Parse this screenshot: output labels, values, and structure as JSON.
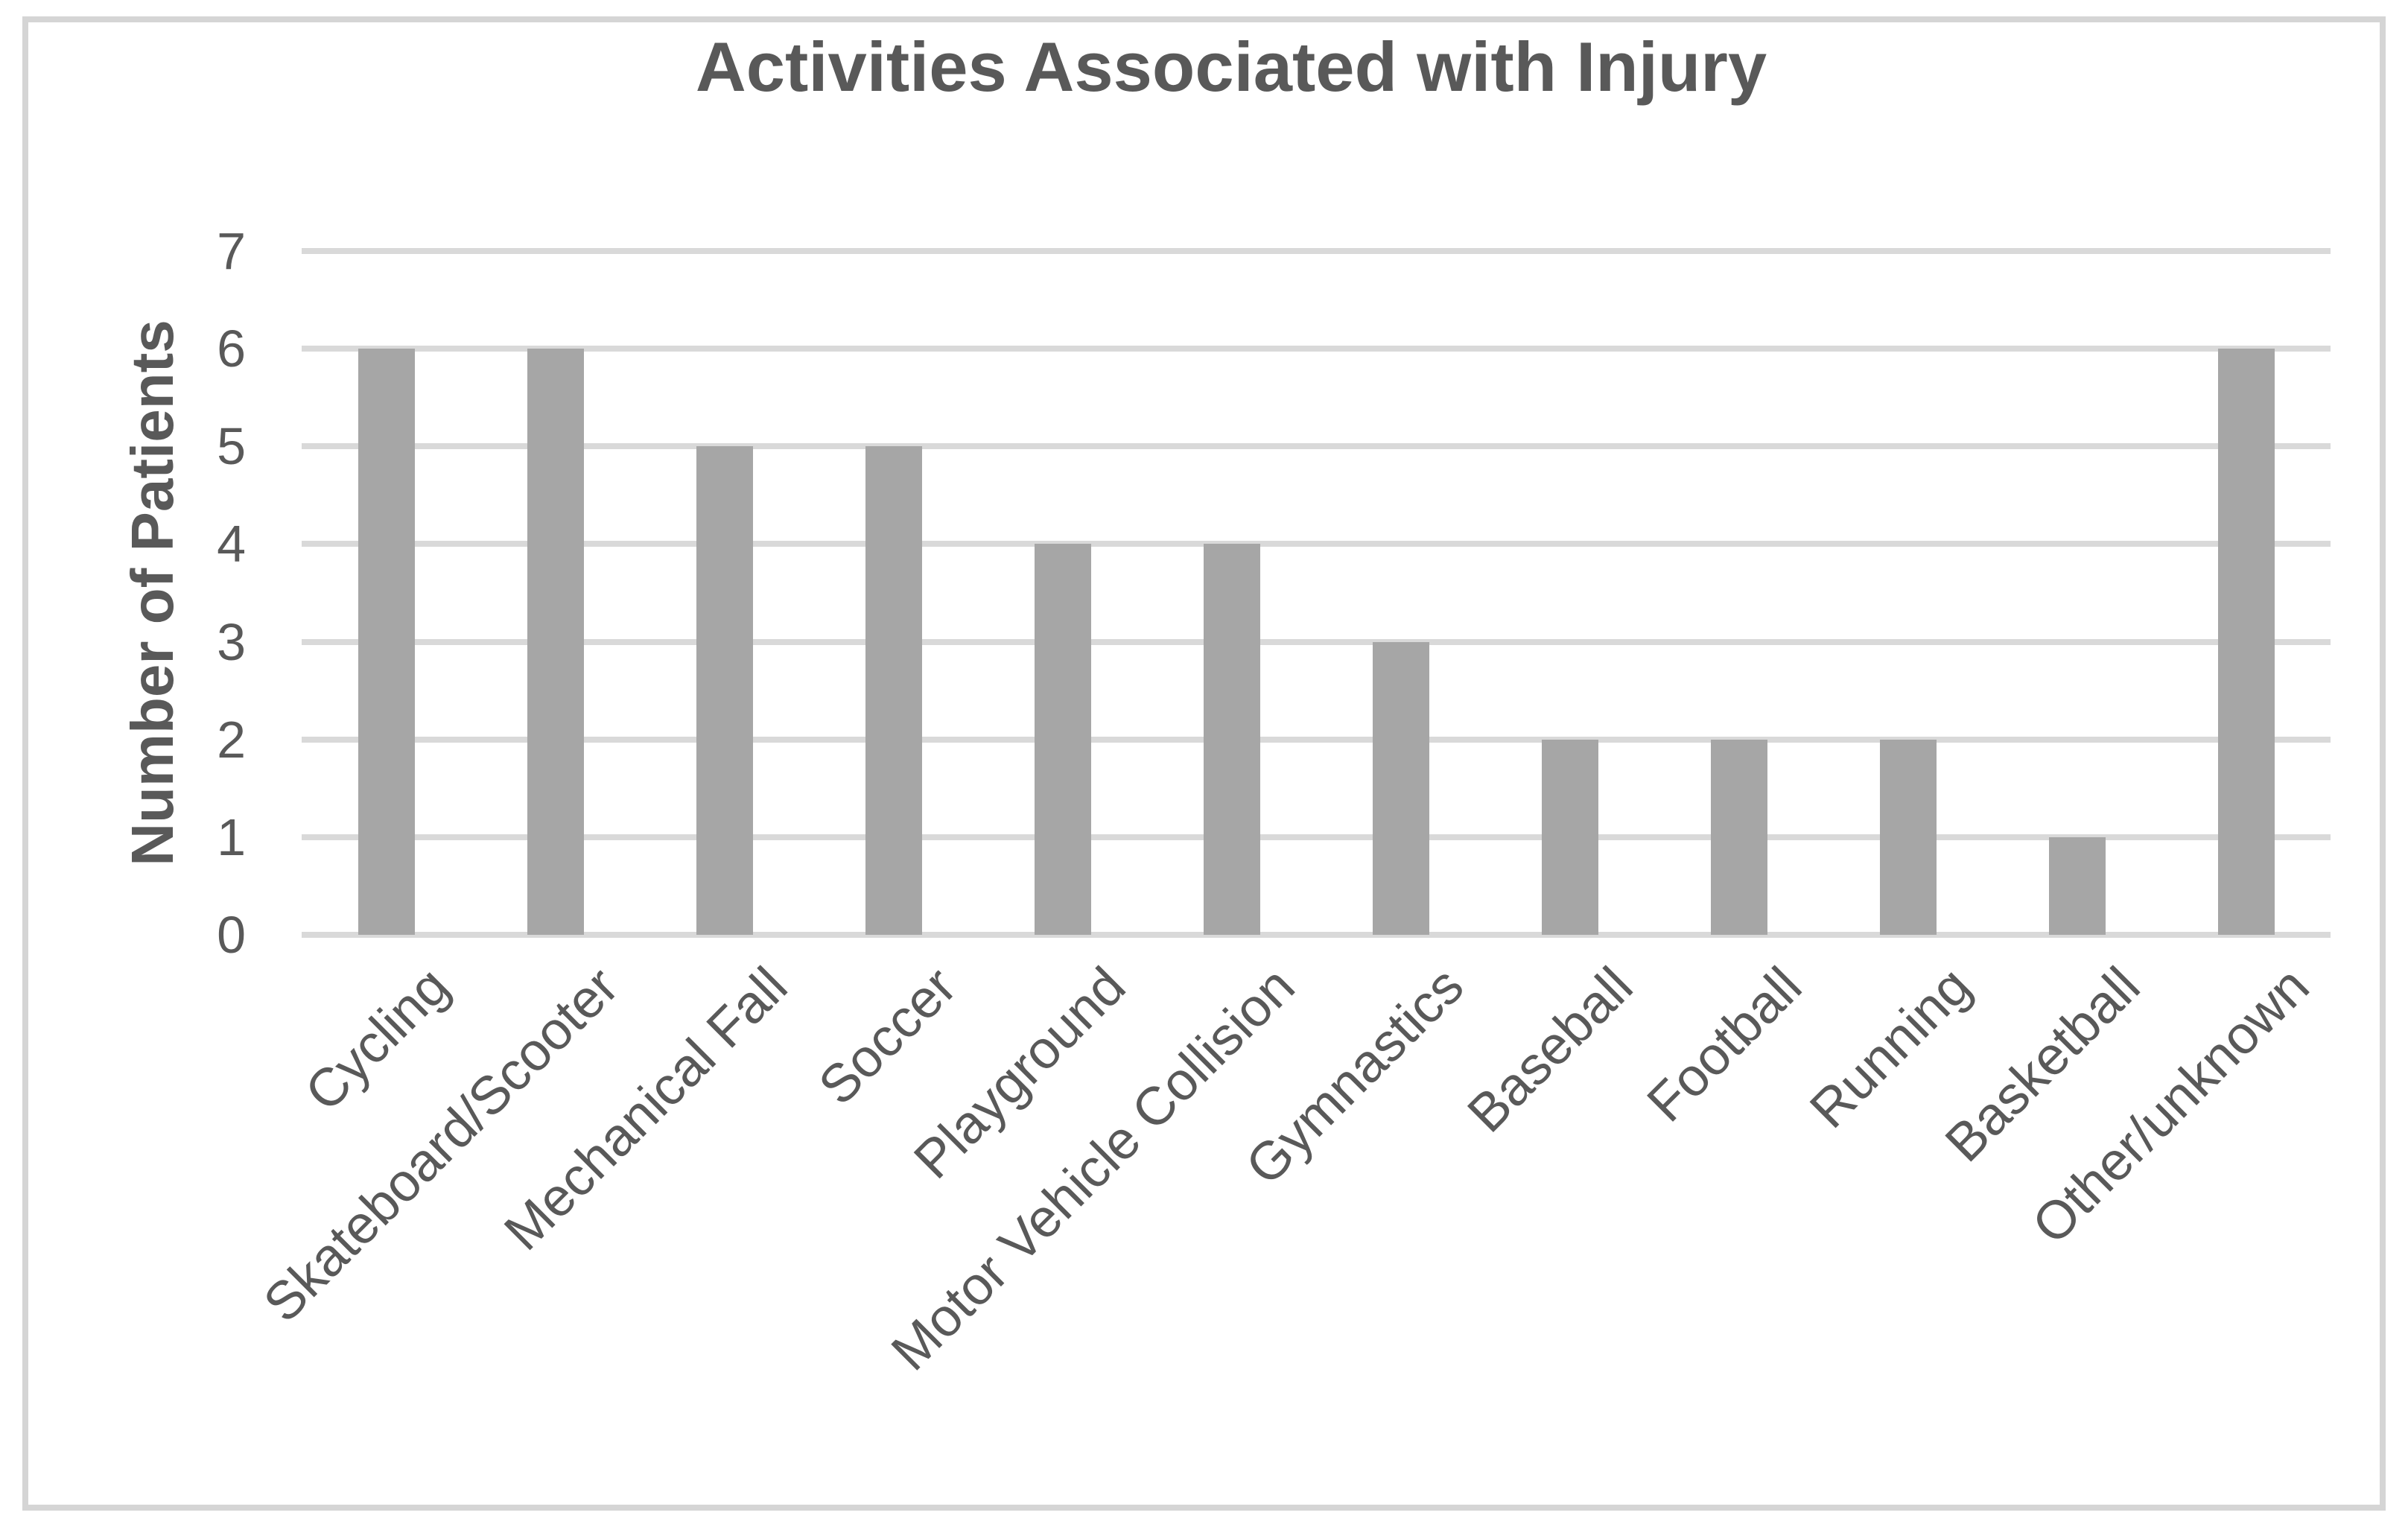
{
  "title": "Activities Associated with Injury",
  "colors": {
    "bar": "#a6a6a6",
    "gridline": "#d9d9d9",
    "text": "#595959",
    "frame_border": "#d5d5d5",
    "background": "#ffffff"
  },
  "chart_data": {
    "type": "bar",
    "title": "Activities Associated with Injury",
    "categories": [
      "Cycling",
      "Skateboard/Scooter",
      "Mechanical Fall",
      "Soccer",
      "Playground",
      "Motor Vehicle Collision",
      "Gymnastics",
      "Baseball",
      "Football",
      "Running",
      "Basketball",
      "Other/unknown"
    ],
    "values": [
      6,
      6,
      5,
      5,
      4,
      4,
      3,
      2,
      2,
      2,
      1,
      6
    ],
    "xlabel": "",
    "ylabel": "Number of Patients",
    "ylim": [
      0,
      7
    ],
    "yticks": [
      0,
      1,
      2,
      3,
      4,
      5,
      6,
      7
    ],
    "grid": "horizontal",
    "legend_position": "none",
    "bar_color": "#a6a6a6",
    "x_tick_rotation_deg": 45
  }
}
